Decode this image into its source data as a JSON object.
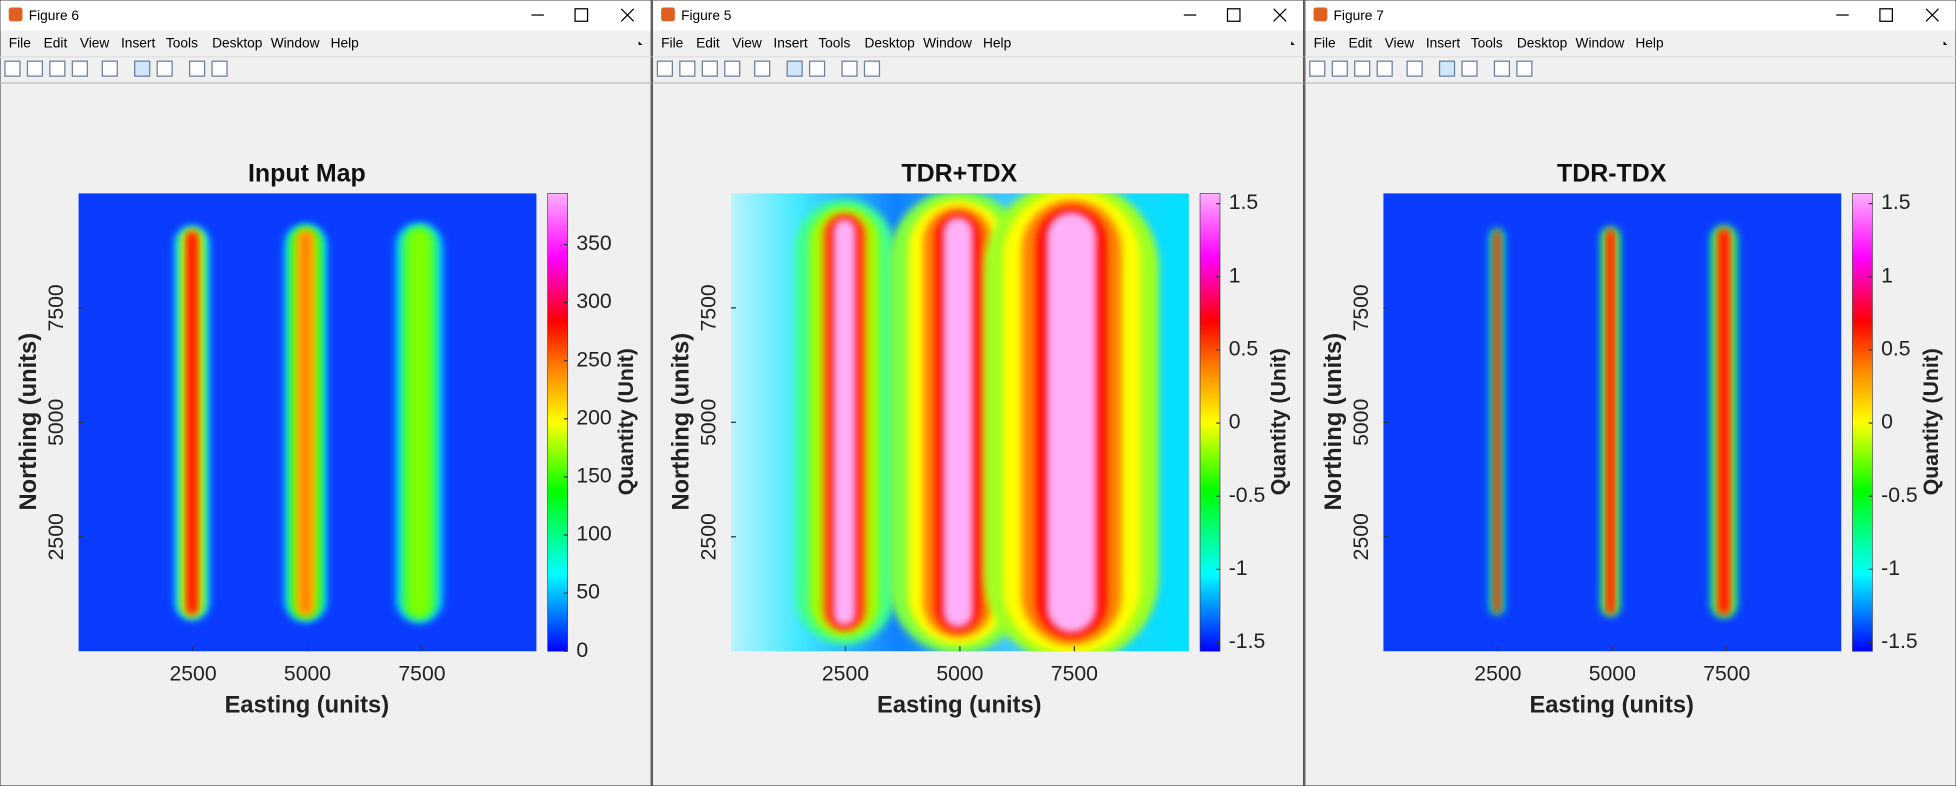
{
  "windows": [
    {
      "title": "Figure 6",
      "menu": [
        "File",
        "Edit",
        "View",
        "Insert",
        "Tools",
        "Desktop",
        "Window",
        "Help"
      ]
    },
    {
      "title": "Figure 5",
      "menu": [
        "File",
        "Edit",
        "View",
        "Insert",
        "Tools",
        "Desktop",
        "Window",
        "Help"
      ]
    },
    {
      "title": "Figure 7",
      "menu": [
        "File",
        "Edit",
        "View",
        "Insert",
        "Tools",
        "Desktop",
        "Window",
        "Help"
      ]
    }
  ],
  "chart_data": [
    {
      "type": "heatmap",
      "title": "Input Map",
      "xlabel": "Easting (units)",
      "ylabel": "Northing (units)",
      "xlim": [
        0,
        10000
      ],
      "ylim": [
        0,
        10000
      ],
      "xticks": [
        2500,
        5000,
        7500
      ],
      "yticks": [
        2500,
        5000,
        7500
      ],
      "colorbar": {
        "label": "Quantity (Unit)",
        "lim": [
          0,
          394
        ],
        "ticks": [
          0,
          50,
          100,
          150,
          200,
          250,
          300,
          350
        ]
      }
    },
    {
      "type": "heatmap",
      "title": "TDR+TDX",
      "xlabel": "Easting (units)",
      "ylabel": "Northing (units)",
      "xlim": [
        0,
        10000
      ],
      "ylim": [
        0,
        10000
      ],
      "xticks": [
        2500,
        5000,
        7500
      ],
      "yticks": [
        2500,
        5000,
        7500
      ],
      "colorbar": {
        "label": "Quantity (Unit)",
        "lim": [
          -1.56,
          1.57
        ],
        "ticks": [
          -1.5,
          -1,
          -0.5,
          0,
          0.5,
          1,
          1.5
        ]
      }
    },
    {
      "type": "heatmap",
      "title": "TDR-TDX",
      "xlabel": "Easting (units)",
      "ylabel": "Northing (units)",
      "xlim": [
        0,
        10000
      ],
      "ylim": [
        0,
        10000
      ],
      "xticks": [
        2500,
        5000,
        7500
      ],
      "yticks": [
        2500,
        5000,
        7500
      ],
      "colorbar": {
        "label": "Quantity (Unit)",
        "lim": [
          -1.56,
          1.57
        ],
        "ticks": [
          -1.5,
          -1,
          -0.5,
          0,
          0.5,
          1,
          1.5
        ]
      }
    }
  ]
}
